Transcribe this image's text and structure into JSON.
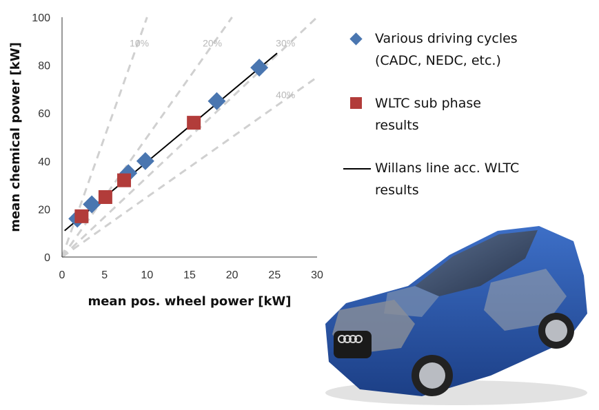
{
  "chart_data": {
    "type": "scatter",
    "xlabel": "mean pos. wheel power [kW]",
    "ylabel": "mean chemical power [kW]",
    "xlim": [
      0,
      30
    ],
    "ylim": [
      0,
      100
    ],
    "xticks": [
      "0",
      "5",
      "10",
      "15",
      "20",
      "25",
      "30"
    ],
    "yticks": [
      "0",
      "20",
      "40",
      "60",
      "80",
      "100"
    ],
    "grid": false,
    "legend_position": "right",
    "series": [
      {
        "name": "Various driving cycles (CADC, NEDC, etc.)",
        "marker": "diamond",
        "color": "#4a76b0",
        "x": [
          1.8,
          3.5,
          7.8,
          9.8,
          18.2,
          23.2
        ],
        "y": [
          16,
          22,
          35,
          40,
          65,
          79
        ]
      },
      {
        "name": "WLTC sub phase results",
        "marker": "square",
        "color": "#b23c3a",
        "x": [
          2.3,
          5.1,
          7.3,
          15.5
        ],
        "y": [
          17,
          25,
          32,
          56
        ]
      },
      {
        "name": "Willans line acc. WLTC results",
        "type": "line",
        "color": "#000000",
        "x": [
          0.3,
          25.3
        ],
        "y": [
          11,
          85
        ]
      }
    ],
    "efficiency_lines": [
      {
        "label": "10%",
        "efficiency": 0.1
      },
      {
        "label": "20%",
        "efficiency": 0.2
      },
      {
        "label": "30%",
        "efficiency": 0.3
      },
      {
        "label": "40%",
        "efficiency": 0.4
      }
    ]
  },
  "legend": {
    "item1_line1": "Various driving cycles",
    "item1_line2": "(CADC, NEDC, etc.)",
    "item2_line1": "WLTC sub phase",
    "item2_line2": "results",
    "item3_line1": "Willans line acc. WLTC",
    "item3_line2": "results"
  },
  "colors": {
    "car_body": "#2a55a8",
    "reference_lines": "#d0d0d0"
  }
}
